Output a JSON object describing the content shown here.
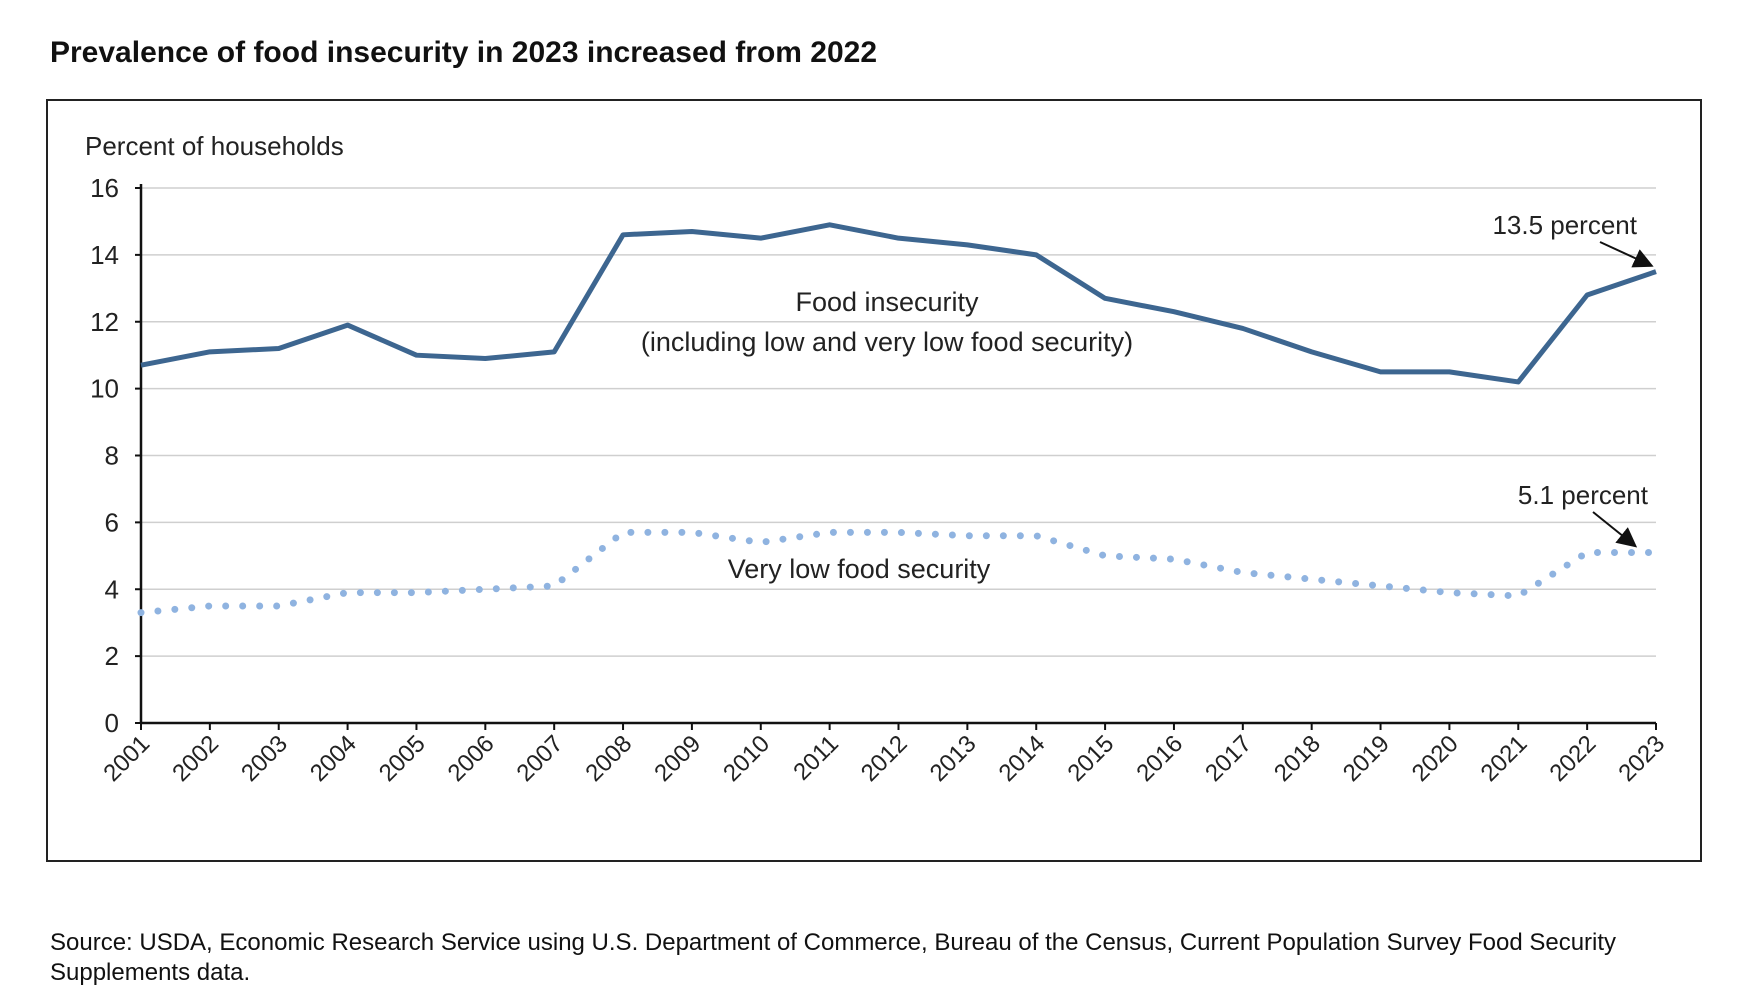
{
  "title": "Prevalence of food insecurity in 2023 increased from 2022",
  "source": "Source: USDA, Economic Research Service using U.S. Department of Commerce, Bureau of the Census, Current Population Survey Food Security Supplements data.",
  "chart_data": {
    "type": "line",
    "title": "Prevalence of food insecurity in 2023 increased from 2022",
    "ylabel": "Percent of households",
    "xlabel": "",
    "ylim": [
      0,
      16
    ],
    "yticks": [
      0,
      2,
      4,
      6,
      8,
      10,
      12,
      14,
      16
    ],
    "grid": true,
    "x": [
      "2001",
      "2002",
      "2003",
      "2004",
      "2005",
      "2006",
      "2007",
      "2008",
      "2009",
      "2010",
      "2011",
      "2012",
      "2013",
      "2014",
      "2015",
      "2016",
      "2017",
      "2018",
      "2019",
      "2020",
      "2021",
      "2022",
      "2023"
    ],
    "series": [
      {
        "name": "Food insecurity\n(including low and very low food security)",
        "label_line1": "Food insecurity",
        "label_line2": "(including low and very low food security)",
        "style": "solid",
        "color": "#3d6690",
        "values": [
          10.7,
          11.1,
          11.2,
          11.9,
          11.0,
          10.9,
          11.1,
          14.6,
          14.7,
          14.5,
          14.9,
          14.5,
          14.3,
          14.0,
          12.7,
          12.3,
          11.8,
          11.1,
          10.5,
          10.5,
          10.2,
          12.8,
          13.5
        ]
      },
      {
        "name": "Very low food security",
        "style": "dotted",
        "color": "#8fb3e0",
        "values": [
          3.3,
          3.5,
          3.5,
          3.9,
          3.9,
          4.0,
          4.1,
          5.7,
          5.7,
          5.4,
          5.7,
          5.7,
          5.6,
          5.6,
          5.0,
          4.9,
          4.5,
          4.3,
          4.1,
          3.9,
          3.8,
          5.1,
          5.1
        ]
      }
    ],
    "annotations": [
      "13.5 percent",
      "5.1 percent"
    ]
  }
}
